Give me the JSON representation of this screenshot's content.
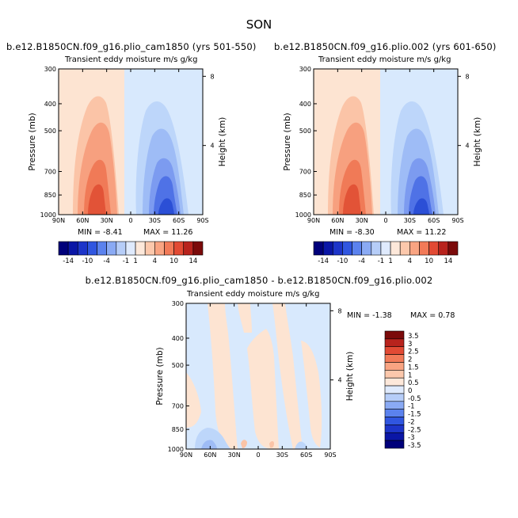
{
  "title": "SON",
  "colors": {
    "pos": [
      "#fde4d2",
      "#fbc4a7",
      "#f7a07f",
      "#f07a57",
      "#e25337"
    ],
    "neg": [
      "#d8e9fd",
      "#bdd6fa",
      "#9ebcf6",
      "#7c9bf0",
      "#4f72e6",
      "#2b4fd6"
    ],
    "cb_top": [
      "#00007a",
      "#0a16a6",
      "#1d35c9",
      "#3056e0",
      "#5b82ee",
      "#8aaaf4",
      "#b6cdf8",
      "#dfeafd",
      "#fde8da",
      "#fcc8ac",
      "#f9a482",
      "#f27a58",
      "#e24a34",
      "#b8231d",
      "#7b0a0a"
    ],
    "cb_bottom": [
      "#00007a",
      "#0a16a6",
      "#1d35c9",
      "#3056e0",
      "#5b82ee",
      "#8aaaf4",
      "#b6cdf8",
      "#dfeafd",
      "#fde8da",
      "#fcc8ac",
      "#f9a482",
      "#f27a58",
      "#e24a34",
      "#b8231d",
      "#7b0a0a"
    ]
  },
  "panels": [
    {
      "case_title": "b.e12.B1850CN.f09_g16.plio_cam1850 (yrs 501-550)",
      "var_title": "Transient eddy moisture m/s g/kg",
      "min_label": "MIN =",
      "min_value": "-8.41",
      "max_label": "MAX =",
      "max_value": "11.26"
    },
    {
      "case_title": "b.e12.B1850CN.f09_g16.plio.002 (yrs 601-650)",
      "var_title": "Transient eddy moisture m/s g/kg",
      "min_label": "MIN =",
      "min_value": "-8.30",
      "max_label": "MAX =",
      "max_value": "11.22"
    }
  ],
  "diff_panel": {
    "case_title": "b.e12.B1850CN.f09_g16.plio_cam1850 - b.e12.B1850CN.f09_g16.plio.002",
    "var_title": "Transient eddy moisture m/s g/kg",
    "min_label": "MIN =",
    "min_value": "-1.38",
    "max_label": "MAX =",
    "max_value": "0.78"
  },
  "axis": {
    "ylabel": "Pressure (mb)",
    "ylabel_right": "Height (km)"
  },
  "chart_data": [
    {
      "type": "heatmap",
      "x_ticks": [
        "90N",
        "60N",
        "30N",
        "0",
        "30S",
        "60S",
        "90S"
      ],
      "y_ticks": [
        "300",
        "400",
        "500",
        "700",
        "850",
        "1000"
      ],
      "y_ticks_right": [
        "8",
        "4"
      ],
      "ylim": [
        1000,
        300
      ],
      "colorbar_labels": [
        "-14",
        "-10",
        "-4",
        "-1",
        "1",
        "4",
        "10",
        "14"
      ],
      "contour_levels": [
        -14,
        -12,
        -10,
        -8,
        -6,
        -4,
        -2,
        -1,
        1,
        2,
        4,
        6,
        8,
        10,
        12,
        14
      ]
    },
    {
      "type": "heatmap",
      "x_ticks": [
        "90N",
        "60N",
        "30N",
        "0",
        "30S",
        "60S",
        "90S"
      ],
      "y_ticks": [
        "300",
        "400",
        "500",
        "700",
        "850",
        "1000"
      ],
      "y_ticks_right": [
        "8",
        "4"
      ],
      "ylim": [
        1000,
        300
      ],
      "colorbar_labels": [
        "-14",
        "-10",
        "-4",
        "-1",
        "1",
        "4",
        "10",
        "14"
      ],
      "contour_levels": [
        -14,
        -12,
        -10,
        -8,
        -6,
        -4,
        -2,
        -1,
        1,
        2,
        4,
        6,
        8,
        10,
        12,
        14
      ]
    },
    {
      "type": "heatmap",
      "x_ticks": [
        "90N",
        "60N",
        "30N",
        "0",
        "30S",
        "60S",
        "90S"
      ],
      "y_ticks": [
        "300",
        "400",
        "500",
        "700",
        "850",
        "1000"
      ],
      "y_ticks_right": [
        "8",
        "4"
      ],
      "ylim": [
        1000,
        300
      ],
      "colorbar_labels": [
        "3.5",
        "3",
        "2.5",
        "2",
        "1.5",
        "1",
        "0.5",
        "0",
        "-0.5",
        "-1",
        "-1.5",
        "-2",
        "-2.5",
        "-3",
        "-3.5"
      ],
      "contour_levels": [
        -3.5,
        -3,
        -2.5,
        -2,
        -1.5,
        -1,
        -0.5,
        0,
        0.5,
        1,
        1.5,
        2,
        2.5,
        3,
        3.5
      ]
    }
  ]
}
